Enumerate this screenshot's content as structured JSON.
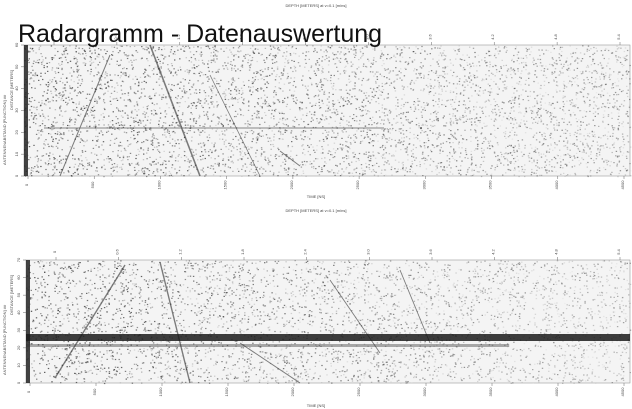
{
  "slide": {
    "title": "Radargramm - Datenauswertung"
  },
  "panels": [
    {
      "header": "DEPTH [METERS] at v=0.1 [m/ns]",
      "top_ticks": [
        "0",
        "0.6",
        "1.2",
        "1.8",
        "2.4",
        "3.0",
        "3.6",
        "4.2",
        "4.8",
        "5.4"
      ],
      "x_ticks": [
        "0",
        "500",
        "1000",
        "1500",
        "2000",
        "2500",
        "3000",
        "3500",
        "4000",
        "4500"
      ],
      "x_label": "TIME [NS]",
      "y_label": "DISTANCE [METERS]",
      "y_label2": "ANTENNENABSTAND [FUNCTION] ##",
      "y_ticks": [
        "0",
        "10",
        "20",
        "30",
        "40",
        "50",
        "60"
      ]
    },
    {
      "header": "DEPTH [METERS] at v=0.1 [m/ns]",
      "top_ticks": [
        "0",
        "0.6",
        "1.2",
        "1.8",
        "2.4",
        "3.0",
        "3.6",
        "4.2",
        "4.8",
        "5.4"
      ],
      "x_ticks": [
        "0",
        "500",
        "1000",
        "1500",
        "2000",
        "2500",
        "3000",
        "3500",
        "4000",
        "4500"
      ],
      "x_label": "TIME [NS]",
      "y_label": "DISTANCE [METERS]",
      "y_label2": "ANTENNENABSTAND [FUNCTION] ##",
      "y_ticks": [
        "0",
        "10",
        "20",
        "30",
        "40",
        "50",
        "60",
        "70"
      ]
    }
  ]
}
